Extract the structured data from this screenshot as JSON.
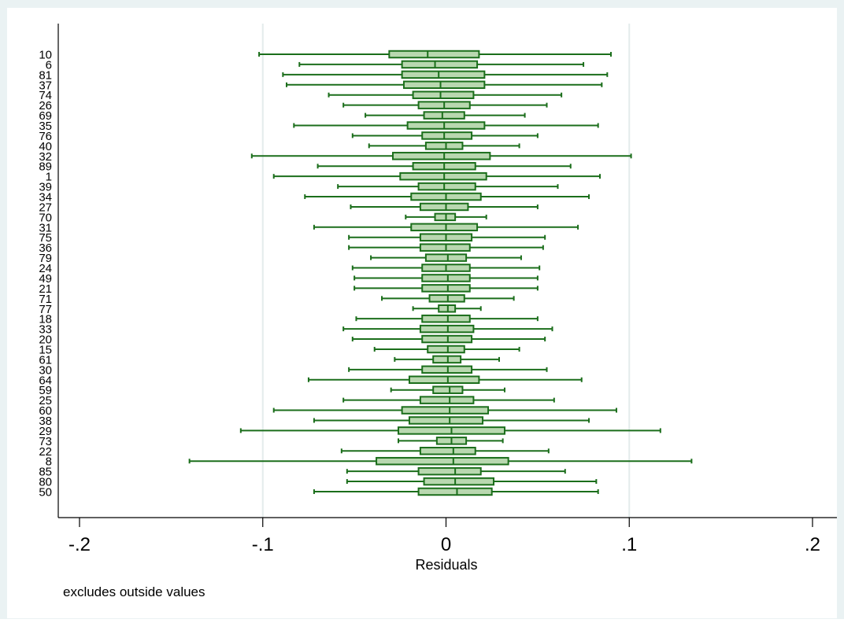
{
  "colors": {
    "outer_background": "#eaf2f3",
    "plot_background": "#ffffff",
    "box_fill": "#b9d8b0",
    "box_stroke": "#1b6e1b",
    "whisker": "#1b6e1b",
    "gridline": "#e4ecec",
    "axis": "#000000"
  },
  "note": "excludes outside values",
  "chart_data": {
    "type": "boxplot",
    "orientation": "horizontal",
    "xlabel": "Residuals",
    "xlim": [
      -0.2,
      0.2
    ],
    "xticks": [
      -0.2,
      -0.1,
      0,
      0.1,
      0.2
    ],
    "xtick_labels": [
      "-.2",
      "-.1",
      "0",
      ".1",
      ".2"
    ],
    "gridlines_at": [
      -0.1,
      0.1
    ],
    "series": [
      {
        "label": "10",
        "whisker_low": -0.102,
        "q1": -0.031,
        "median": -0.01,
        "q3": 0.018,
        "whisker_high": 0.09
      },
      {
        "label": "6",
        "whisker_low": -0.08,
        "q1": -0.024,
        "median": -0.006,
        "q3": 0.017,
        "whisker_high": 0.075
      },
      {
        "label": "81",
        "whisker_low": -0.089,
        "q1": -0.024,
        "median": -0.004,
        "q3": 0.021,
        "whisker_high": 0.088
      },
      {
        "label": "37",
        "whisker_low": -0.087,
        "q1": -0.023,
        "median": -0.003,
        "q3": 0.021,
        "whisker_high": 0.085
      },
      {
        "label": "74",
        "whisker_low": -0.064,
        "q1": -0.018,
        "median": -0.003,
        "q3": 0.015,
        "whisker_high": 0.063
      },
      {
        "label": "26",
        "whisker_low": -0.056,
        "q1": -0.015,
        "median": -0.001,
        "q3": 0.013,
        "whisker_high": 0.055
      },
      {
        "label": "69",
        "whisker_low": -0.044,
        "q1": -0.012,
        "median": -0.002,
        "q3": 0.01,
        "whisker_high": 0.043
      },
      {
        "label": "35",
        "whisker_low": -0.083,
        "q1": -0.021,
        "median": -0.001,
        "q3": 0.021,
        "whisker_high": 0.083
      },
      {
        "label": "76",
        "whisker_low": -0.051,
        "q1": -0.013,
        "median": -0.001,
        "q3": 0.014,
        "whisker_high": 0.05
      },
      {
        "label": "40",
        "whisker_low": -0.042,
        "q1": -0.011,
        "median": 0.0,
        "q3": 0.009,
        "whisker_high": 0.04
      },
      {
        "label": "32",
        "whisker_low": -0.106,
        "q1": -0.029,
        "median": -0.001,
        "q3": 0.024,
        "whisker_high": 0.101
      },
      {
        "label": "89",
        "whisker_low": -0.07,
        "q1": -0.018,
        "median": -0.001,
        "q3": 0.016,
        "whisker_high": 0.068
      },
      {
        "label": "1",
        "whisker_low": -0.094,
        "q1": -0.025,
        "median": -0.001,
        "q3": 0.022,
        "whisker_high": 0.084
      },
      {
        "label": "39",
        "whisker_low": -0.059,
        "q1": -0.015,
        "median": -0.001,
        "q3": 0.016,
        "whisker_high": 0.061
      },
      {
        "label": "34",
        "whisker_low": -0.077,
        "q1": -0.019,
        "median": 0.0,
        "q3": 0.019,
        "whisker_high": 0.078
      },
      {
        "label": "27",
        "whisker_low": -0.052,
        "q1": -0.014,
        "median": 0.0,
        "q3": 0.012,
        "whisker_high": 0.05
      },
      {
        "label": "70",
        "whisker_low": -0.022,
        "q1": -0.006,
        "median": 0.0,
        "q3": 0.005,
        "whisker_high": 0.022
      },
      {
        "label": "31",
        "whisker_low": -0.072,
        "q1": -0.019,
        "median": 0.0,
        "q3": 0.017,
        "whisker_high": 0.072
      },
      {
        "label": "75",
        "whisker_low": -0.053,
        "q1": -0.014,
        "median": 0.0,
        "q3": 0.014,
        "whisker_high": 0.054
      },
      {
        "label": "36",
        "whisker_low": -0.053,
        "q1": -0.014,
        "median": 0.0,
        "q3": 0.013,
        "whisker_high": 0.053
      },
      {
        "label": "79",
        "whisker_low": -0.041,
        "q1": -0.011,
        "median": 0.001,
        "q3": 0.011,
        "whisker_high": 0.041
      },
      {
        "label": "24",
        "whisker_low": -0.051,
        "q1": -0.013,
        "median": 0.0,
        "q3": 0.013,
        "whisker_high": 0.051
      },
      {
        "label": "49",
        "whisker_low": -0.05,
        "q1": -0.013,
        "median": 0.001,
        "q3": 0.013,
        "whisker_high": 0.05
      },
      {
        "label": "21",
        "whisker_low": -0.05,
        "q1": -0.013,
        "median": 0.001,
        "q3": 0.013,
        "whisker_high": 0.05
      },
      {
        "label": "71",
        "whisker_low": -0.035,
        "q1": -0.009,
        "median": 0.001,
        "q3": 0.01,
        "whisker_high": 0.037
      },
      {
        "label": "77",
        "whisker_low": -0.018,
        "q1": -0.004,
        "median": 0.001,
        "q3": 0.005,
        "whisker_high": 0.019
      },
      {
        "label": "18",
        "whisker_low": -0.049,
        "q1": -0.013,
        "median": 0.001,
        "q3": 0.013,
        "whisker_high": 0.05
      },
      {
        "label": "33",
        "whisker_low": -0.056,
        "q1": -0.014,
        "median": 0.001,
        "q3": 0.015,
        "whisker_high": 0.058
      },
      {
        "label": "20",
        "whisker_low": -0.051,
        "q1": -0.013,
        "median": 0.001,
        "q3": 0.014,
        "whisker_high": 0.054
      },
      {
        "label": "15",
        "whisker_low": -0.039,
        "q1": -0.01,
        "median": 0.001,
        "q3": 0.01,
        "whisker_high": 0.04
      },
      {
        "label": "61",
        "whisker_low": -0.028,
        "q1": -0.007,
        "median": 0.001,
        "q3": 0.008,
        "whisker_high": 0.029
      },
      {
        "label": "30",
        "whisker_low": -0.053,
        "q1": -0.013,
        "median": 0.001,
        "q3": 0.014,
        "whisker_high": 0.055
      },
      {
        "label": "64",
        "whisker_low": -0.075,
        "q1": -0.02,
        "median": 0.001,
        "q3": 0.018,
        "whisker_high": 0.074
      },
      {
        "label": "59",
        "whisker_low": -0.03,
        "q1": -0.007,
        "median": 0.002,
        "q3": 0.009,
        "whisker_high": 0.032
      },
      {
        "label": "25",
        "whisker_low": -0.056,
        "q1": -0.014,
        "median": 0.002,
        "q3": 0.015,
        "whisker_high": 0.059
      },
      {
        "label": "60",
        "whisker_low": -0.094,
        "q1": -0.024,
        "median": 0.002,
        "q3": 0.023,
        "whisker_high": 0.093
      },
      {
        "label": "38",
        "whisker_low": -0.072,
        "q1": -0.02,
        "median": 0.002,
        "q3": 0.02,
        "whisker_high": 0.078
      },
      {
        "label": "29",
        "whisker_low": -0.112,
        "q1": -0.026,
        "median": 0.003,
        "q3": 0.032,
        "whisker_high": 0.117
      },
      {
        "label": "73",
        "whisker_low": -0.026,
        "q1": -0.005,
        "median": 0.003,
        "q3": 0.011,
        "whisker_high": 0.031
      },
      {
        "label": "22",
        "whisker_low": -0.057,
        "q1": -0.014,
        "median": 0.004,
        "q3": 0.016,
        "whisker_high": 0.056
      },
      {
        "label": "8",
        "whisker_low": -0.14,
        "q1": -0.038,
        "median": 0.004,
        "q3": 0.034,
        "whisker_high": 0.134
      },
      {
        "label": "85",
        "whisker_low": -0.054,
        "q1": -0.015,
        "median": 0.005,
        "q3": 0.019,
        "whisker_high": 0.065
      },
      {
        "label": "80",
        "whisker_low": -0.054,
        "q1": -0.012,
        "median": 0.005,
        "q3": 0.026,
        "whisker_high": 0.082
      },
      {
        "label": "50",
        "whisker_low": -0.072,
        "q1": -0.015,
        "median": 0.006,
        "q3": 0.025,
        "whisker_high": 0.083
      }
    ]
  }
}
